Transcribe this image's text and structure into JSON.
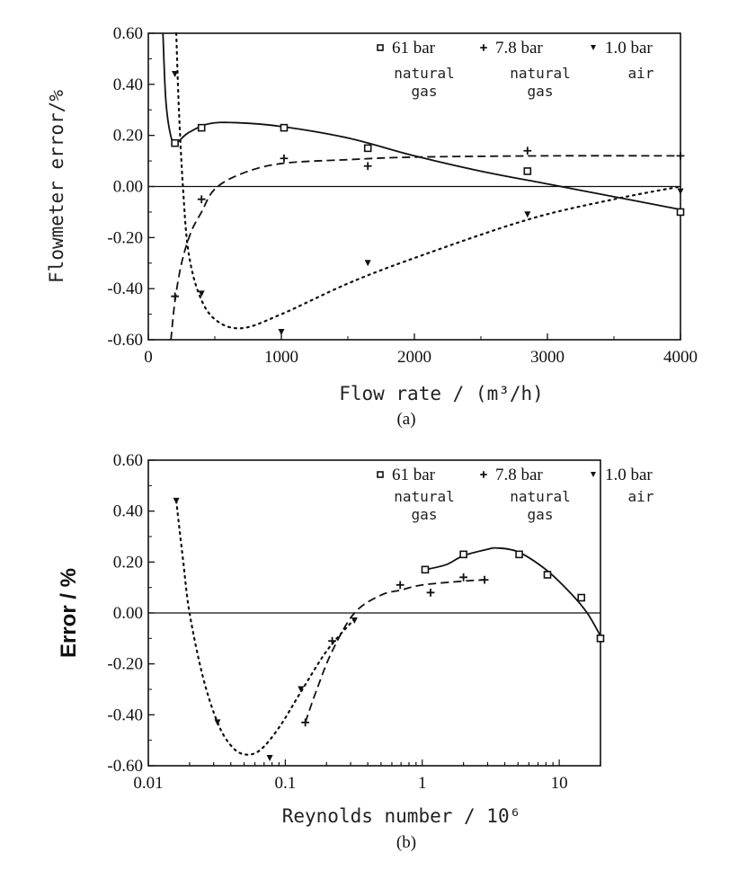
{
  "chart_data": [
    {
      "type": "line",
      "caption": "(a)",
      "xlabel": "Flow rate / (m³/h)",
      "ylabel": "Flowmeter error/%",
      "xscale": "linear",
      "xlim": [
        0,
        4000
      ],
      "ylim": [
        -0.6,
        0.6
      ],
      "xticks": [
        "0",
        "1000",
        "2000",
        "3000",
        "4000"
      ],
      "yticks": [
        "-0.60",
        "-0.40",
        "-0.20",
        "0.00",
        "0.20",
        "0.40",
        "0.60"
      ],
      "legend_position": "top-right",
      "series": [
        {
          "name": "61 bar",
          "desc": [
            "natural",
            "gas"
          ],
          "marker": "square",
          "line": "solid",
          "x": [
            200,
            400,
            1020,
            1650,
            2850,
            4000
          ],
          "y": [
            0.17,
            0.23,
            0.23,
            0.15,
            0.06,
            -0.1
          ],
          "fit": [
            [
              110,
              0.6
            ],
            [
              130,
              0.35
            ],
            [
              160,
              0.22
            ],
            [
              200,
              0.17
            ],
            [
              300,
              0.21
            ],
            [
              450,
              0.245
            ],
            [
              650,
              0.25
            ],
            [
              1000,
              0.235
            ],
            [
              1500,
              0.19
            ],
            [
              2000,
              0.12
            ],
            [
              2500,
              0.06
            ],
            [
              3000,
              0.01
            ],
            [
              3500,
              -0.04
            ],
            [
              4000,
              -0.09
            ]
          ]
        },
        {
          "name": "7.8 bar",
          "desc": [
            "natural",
            "gas"
          ],
          "marker": "plus",
          "line": "dashed",
          "x": [
            200,
            400,
            1020,
            1650,
            2850,
            4000
          ],
          "y": [
            -0.43,
            -0.05,
            0.11,
            0.08,
            0.14,
            0.12
          ],
          "fit": [
            [
              170,
              -0.6
            ],
            [
              200,
              -0.45
            ],
            [
              250,
              -0.3
            ],
            [
              320,
              -0.18
            ],
            [
              400,
              -0.1
            ],
            [
              500,
              -0.01
            ],
            [
              700,
              0.05
            ],
            [
              1000,
              0.09
            ],
            [
              1500,
              0.105
            ],
            [
              2000,
              0.115
            ],
            [
              3000,
              0.12
            ],
            [
              4000,
              0.12
            ]
          ]
        },
        {
          "name": "1.0 bar",
          "desc": [
            "air"
          ],
          "marker": "triangle-down",
          "line": "dotted",
          "x": [
            200,
            400,
            1000,
            1650,
            2850,
            4000
          ],
          "y": [
            0.44,
            -0.42,
            -0.57,
            -0.3,
            -0.11,
            -0.02
          ],
          "fit": [
            [
              210,
              0.6
            ],
            [
              230,
              0.3
            ],
            [
              260,
              0.0
            ],
            [
              300,
              -0.25
            ],
            [
              380,
              -0.42
            ],
            [
              500,
              -0.52
            ],
            [
              700,
              -0.555
            ],
            [
              1000,
              -0.5
            ],
            [
              1500,
              -0.38
            ],
            [
              2000,
              -0.28
            ],
            [
              2850,
              -0.13
            ],
            [
              3500,
              -0.05
            ],
            [
              4000,
              0.0
            ]
          ]
        }
      ]
    },
    {
      "type": "line",
      "caption": "(b)",
      "xlabel": "Reynolds number / 10⁶",
      "ylabel": "Error / %",
      "xscale": "log",
      "xlim": [
        0.01,
        20
      ],
      "ylim": [
        -0.6,
        0.6
      ],
      "xticks": [
        "0.01",
        "0.1",
        "1",
        "10"
      ],
      "yticks": [
        "-0.60",
        "-0.40",
        "-0.20",
        "0.00",
        "0.20",
        "0.40",
        "0.60"
      ],
      "legend_position": "top-right",
      "series": [
        {
          "name": "61 bar",
          "desc": [
            "natural",
            "gas"
          ],
          "marker": "square",
          "line": "solid",
          "x": [
            1.05,
            2.0,
            5.1,
            8.2,
            14.5,
            20
          ],
          "y": [
            0.17,
            0.23,
            0.23,
            0.15,
            0.06,
            -0.1
          ],
          "fit": [
            [
              1.05,
              0.17
            ],
            [
              1.5,
              0.19
            ],
            [
              2,
              0.225
            ],
            [
              3,
              0.25
            ],
            [
              3.5,
              0.255
            ],
            [
              5,
              0.24
            ],
            [
              8,
              0.17
            ],
            [
              12,
              0.08
            ],
            [
              16,
              0.0
            ],
            [
              20,
              -0.09
            ]
          ]
        },
        {
          "name": "7.8 bar",
          "desc": [
            "natural",
            "gas"
          ],
          "marker": "plus",
          "line": "dashed",
          "x": [
            0.14,
            0.22,
            0.69,
            1.15,
            2.0,
            2.85
          ],
          "y": [
            -0.43,
            -0.11,
            0.11,
            0.08,
            0.14,
            0.13
          ],
          "fit": [
            [
              0.14,
              -0.43
            ],
            [
              0.17,
              -0.3
            ],
            [
              0.22,
              -0.15
            ],
            [
              0.32,
              0.0
            ],
            [
              0.5,
              0.07
            ],
            [
              0.7,
              0.09
            ],
            [
              1,
              0.11
            ],
            [
              2,
              0.125
            ],
            [
              2.85,
              0.13
            ]
          ]
        },
        {
          "name": "1.0 bar",
          "desc": [
            "air"
          ],
          "marker": "triangle-down",
          "line": "dotted",
          "x": [
            0.016,
            0.032,
            0.077,
            0.13,
            0.32
          ],
          "y": [
            0.44,
            -0.43,
            -0.57,
            -0.3,
            -0.03
          ],
          "fit": [
            [
              0.016,
              0.44
            ],
            [
              0.018,
              0.2
            ],
            [
              0.02,
              0.0
            ],
            [
              0.025,
              -0.25
            ],
            [
              0.032,
              -0.43
            ],
            [
              0.04,
              -0.52
            ],
            [
              0.05,
              -0.555
            ],
            [
              0.065,
              -0.54
            ],
            [
              0.09,
              -0.45
            ],
            [
              0.13,
              -0.31
            ],
            [
              0.2,
              -0.15
            ],
            [
              0.3,
              -0.04
            ],
            [
              0.33,
              -0.02
            ]
          ]
        }
      ]
    }
  ]
}
